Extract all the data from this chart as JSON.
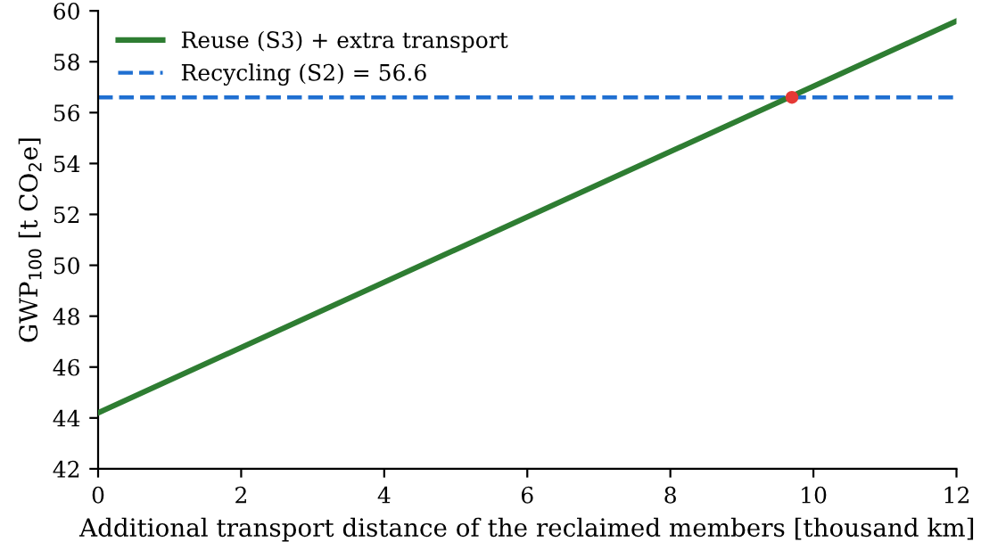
{
  "chart_data": {
    "type": "line",
    "xlabel": "Additional transport distance of the reclaimed members [thousand km]",
    "ylabel": "GWP$_{100}$ [t CO$_{2}$e]",
    "series": [
      {
        "name": "Reuse (S3) + extra transport",
        "color": "#2e7d32",
        "x": [
          0,
          12
        ],
        "values": [
          44.2,
          59.6
        ]
      },
      {
        "type": "scatter",
        "marker": "circle",
        "color": "#e53935",
        "x": [
          9.7
        ],
        "values": [
          56.6
        ]
      }
    ],
    "ref_lines": [
      {
        "axis": "y",
        "value": 56.6,
        "label": "Recycling (S2) = 56.6",
        "color": "#1f6fd1",
        "line_style": "dashed"
      }
    ],
    "xlim": [
      0,
      12
    ],
    "xticks": [
      0,
      2,
      4,
      6,
      8,
      10,
      12
    ],
    "ylim": [
      42,
      60
    ],
    "yticks": [
      42,
      44,
      46,
      48,
      50,
      52,
      54,
      56,
      58,
      60
    ],
    "grid": false,
    "legend": "top left",
    "marker": "none",
    "line_style": "solid"
  }
}
